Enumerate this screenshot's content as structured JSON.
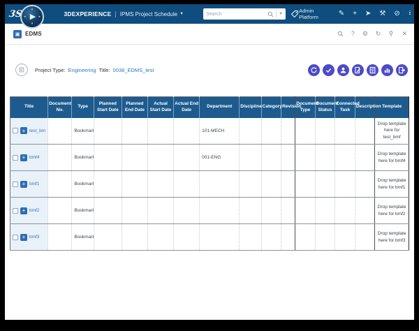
{
  "topbar": {
    "brand": "3DEXPERIENCE",
    "divider": "|",
    "app_menu_label": "IPMS Project Schedule",
    "search_placeholder": "Search",
    "user_label": "Admin Platform",
    "icons": [
      "pen",
      "add",
      "share",
      "tools",
      "globe",
      "apps-grid"
    ]
  },
  "tab_bar": {
    "active_tab": "EDMS",
    "icons": [
      "search",
      "help",
      "settings",
      "refresh",
      "pin",
      "close"
    ]
  },
  "info_bar": {
    "project_type_label": "Project Type:",
    "project_type_value": "Engineering",
    "title_label": "Title:",
    "title_value": "0038_EDMS_test"
  },
  "action_buttons": [
    "reload",
    "validate",
    "user",
    "edit-document",
    "document",
    "statistics",
    "export"
  ],
  "table": {
    "columns": [
      "Title",
      "Document No.",
      "Type",
      "Planned Start Date",
      "Planned End Date",
      "Actual Start Date",
      "Actual End Date",
      "Department",
      "Discipline",
      "Category",
      "Revision",
      "Document Type",
      "Document Status",
      "Connected Task",
      "Description",
      "Template"
    ],
    "rows": [
      {
        "title": "test_bmf",
        "type": "Bookmark",
        "department": "101-MECH",
        "template": "Drop template here for test_bmf"
      },
      {
        "title": "bmf4",
        "type": "Bookmark",
        "department": "001-ENG",
        "template": "Drop template here for bmf4"
      },
      {
        "title": "bmf1",
        "type": "Bookmark",
        "department": "",
        "template": "Drop template here for bmf1"
      },
      {
        "title": "bmf2",
        "type": "Bookmark",
        "department": "",
        "template": "Drop template here for bmf2"
      },
      {
        "title": "bmf3",
        "type": "Bookmark",
        "department": "",
        "template": "Drop template here for bmf3"
      }
    ]
  },
  "colors": {
    "topbar_bg": "#0e4d7e",
    "table_header_bg": "#1d5b8e",
    "action_button_bg": "#4d4bc7",
    "link": "#2d79c0",
    "title_cell_bg": "#e9f1f9"
  }
}
